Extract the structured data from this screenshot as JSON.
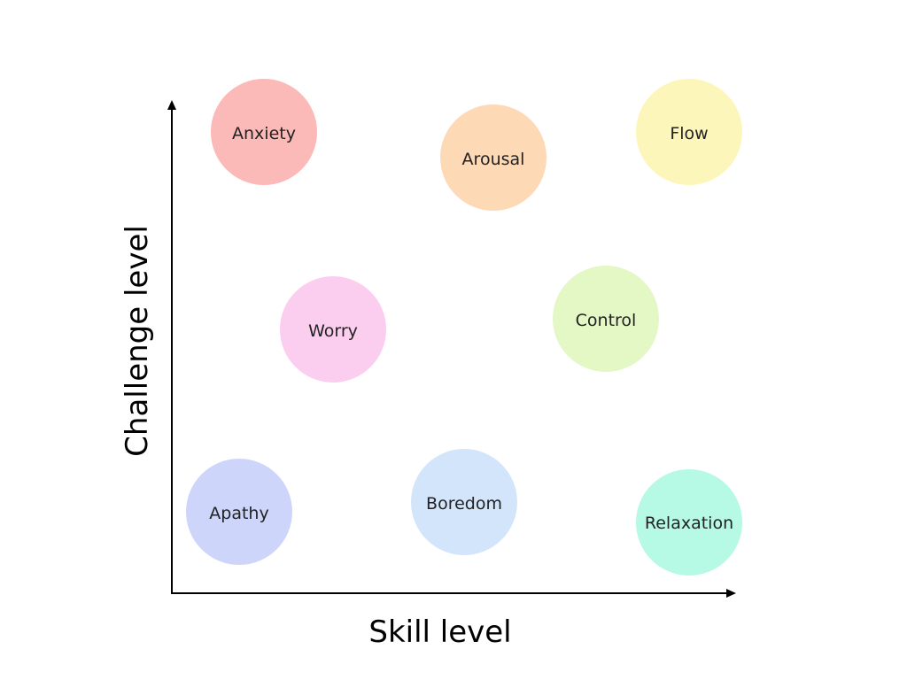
{
  "diagram": {
    "x_axis_label": "Skill level",
    "y_axis_label": "Challenge level",
    "states": [
      {
        "id": "anxiety",
        "label": "Anxiety",
        "color": "#fbb9b7"
      },
      {
        "id": "arousal",
        "label": "Arousal",
        "color": "#fdd9b5"
      },
      {
        "id": "flow",
        "label": "Flow",
        "color": "#fdf6ba"
      },
      {
        "id": "worry",
        "label": "Worry",
        "color": "#fbcdef"
      },
      {
        "id": "control",
        "label": "Control",
        "color": "#e4f8c6"
      },
      {
        "id": "apathy",
        "label": "Apathy",
        "color": "#ced5fa"
      },
      {
        "id": "boredom",
        "label": "Boredom",
        "color": "#d3e5fb"
      },
      {
        "id": "relaxation",
        "label": "Relaxation",
        "color": "#b6f9e5"
      }
    ]
  }
}
